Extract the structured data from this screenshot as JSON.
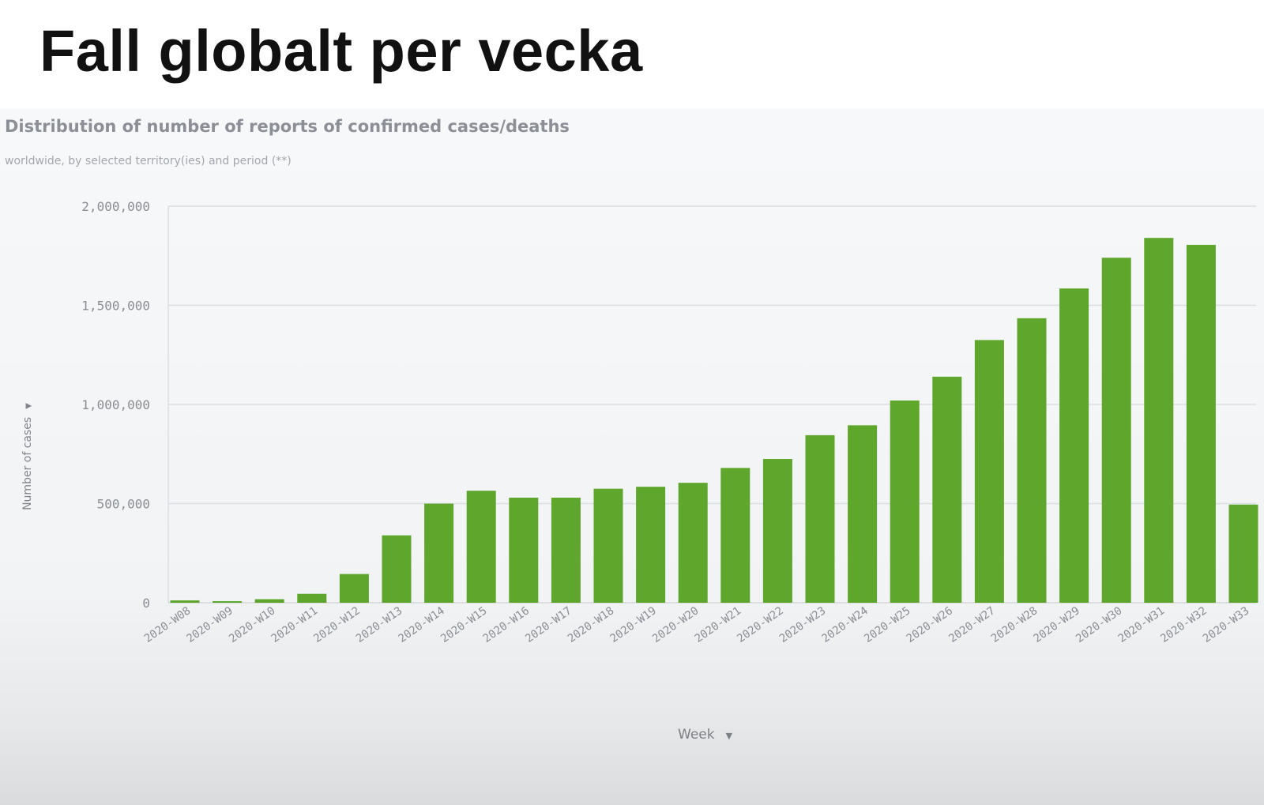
{
  "slide": {
    "title": "Fall globalt per vecka"
  },
  "chart_data": {
    "type": "bar",
    "title": "Distribution of number of reports of confirmed cases/deaths",
    "subtitle": "worldwide, by selected territory(ies) and period (**)",
    "xlabel": "Week",
    "ylabel": "Number of cases",
    "ylim": [
      0,
      2000000
    ],
    "yticks": [
      0,
      500000,
      1000000,
      1500000,
      2000000
    ],
    "ytick_labels": [
      "0",
      "500,000",
      "1,000,000",
      "1,500,000",
      "2,000,000"
    ],
    "grid": true,
    "bar_color": "#5fa62c",
    "categories": [
      "2020-W08",
      "2020-W09",
      "2020-W10",
      "2020-W11",
      "2020-W12",
      "2020-W13",
      "2020-W14",
      "2020-W15",
      "2020-W16",
      "2020-W17",
      "2020-W18",
      "2020-W19",
      "2020-W20",
      "2020-W21",
      "2020-W22",
      "2020-W23",
      "2020-W24",
      "2020-W25",
      "2020-W26",
      "2020-W27",
      "2020-W28",
      "2020-W29",
      "2020-W30",
      "2020-W31",
      "2020-W32",
      "2020-W33"
    ],
    "values": [
      12000,
      8000,
      18000,
      45000,
      145000,
      340000,
      500000,
      565000,
      530000,
      530000,
      575000,
      585000,
      605000,
      680000,
      725000,
      845000,
      895000,
      1020000,
      1140000,
      1325000,
      1435000,
      1585000,
      1740000,
      1840000,
      1805000,
      495000
    ]
  }
}
